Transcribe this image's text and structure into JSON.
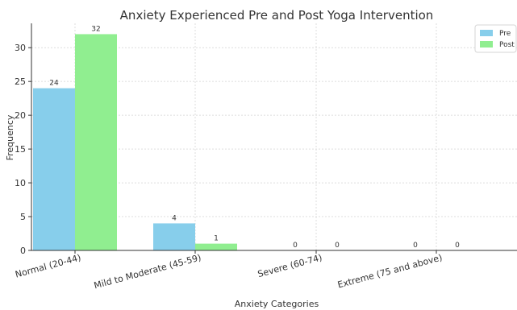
{
  "chart_data": {
    "type": "bar",
    "title": "Anxiety Experienced Pre and Post Yoga Intervention",
    "xlabel": "Anxiety Categories",
    "ylabel": "Frequency",
    "categories": [
      "Normal (20-44)",
      "Mild to Moderate (45-59)",
      "Severe (60-74)",
      "Extreme (75 and above)"
    ],
    "series": [
      {
        "name": "Pre",
        "values": [
          24,
          4,
          0,
          0
        ],
        "color": "#87CEEB"
      },
      {
        "name": "Post",
        "values": [
          32,
          1,
          0,
          0
        ],
        "color": "#90EE90"
      }
    ],
    "ylim": [
      0,
      33.6
    ],
    "yticks": [
      0,
      5,
      10,
      15,
      20,
      25,
      30
    ],
    "grid": true,
    "legend": "top-right"
  }
}
